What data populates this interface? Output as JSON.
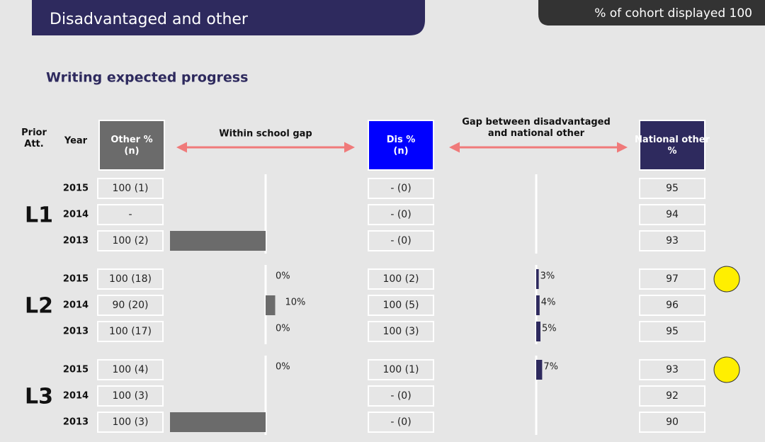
{
  "header": {
    "title": "Disadvantaged and other",
    "cohort": "% of cohort displayed 100"
  },
  "section_title": "Writing expected progress",
  "columns": {
    "prior": "Prior Att.",
    "year": "Year",
    "other": "Other % (n)",
    "within": "Within school gap",
    "dis": "Dis % (n)",
    "gap": "Gap between disadvantaged and national other",
    "national": "National other %"
  },
  "groups": [
    {
      "label": "L1",
      "rows": [
        {
          "year": "2015",
          "other": "100 (1)",
          "dis": "- (0)",
          "national": "95",
          "flag": false
        },
        {
          "year": "2014",
          "other": "-",
          "dis": "- (0)",
          "national": "94",
          "flag": false
        },
        {
          "year": "2013",
          "other": "100 (2)",
          "within_gap": {
            "value": -100
          },
          "dis": "- (0)",
          "national": "93",
          "flag": false
        }
      ]
    },
    {
      "label": "L2",
      "rows": [
        {
          "year": "2015",
          "other": "100 (18)",
          "within_gap": {
            "value": 0,
            "label": "0%"
          },
          "dis": "100 (2)",
          "national_gap": {
            "value": 3,
            "label": "3%"
          },
          "national": "97",
          "flag": true
        },
        {
          "year": "2014",
          "other": "90 (20)",
          "within_gap": {
            "value": 10,
            "label": "10%"
          },
          "dis": "100 (5)",
          "national_gap": {
            "value": 4,
            "label": "4%"
          },
          "national": "96",
          "flag": false
        },
        {
          "year": "2013",
          "other": "100 (17)",
          "within_gap": {
            "value": 0,
            "label": "0%"
          },
          "dis": "100 (3)",
          "national_gap": {
            "value": 5,
            "label": "5%"
          },
          "national": "95",
          "flag": false
        }
      ]
    },
    {
      "label": "L3",
      "rows": [
        {
          "year": "2015",
          "other": "100 (4)",
          "within_gap": {
            "value": 0,
            "label": "0%"
          },
          "dis": "100 (1)",
          "national_gap": {
            "value": 7,
            "label": "7%"
          },
          "national": "93",
          "flag": true
        },
        {
          "year": "2014",
          "other": "100 (3)",
          "dis": "- (0)",
          "national": "92",
          "flag": false
        },
        {
          "year": "2013",
          "other": "100 (3)",
          "within_gap": {
            "value": -100
          },
          "dis": "- (0)",
          "national": "90",
          "flag": false
        }
      ]
    }
  ]
}
